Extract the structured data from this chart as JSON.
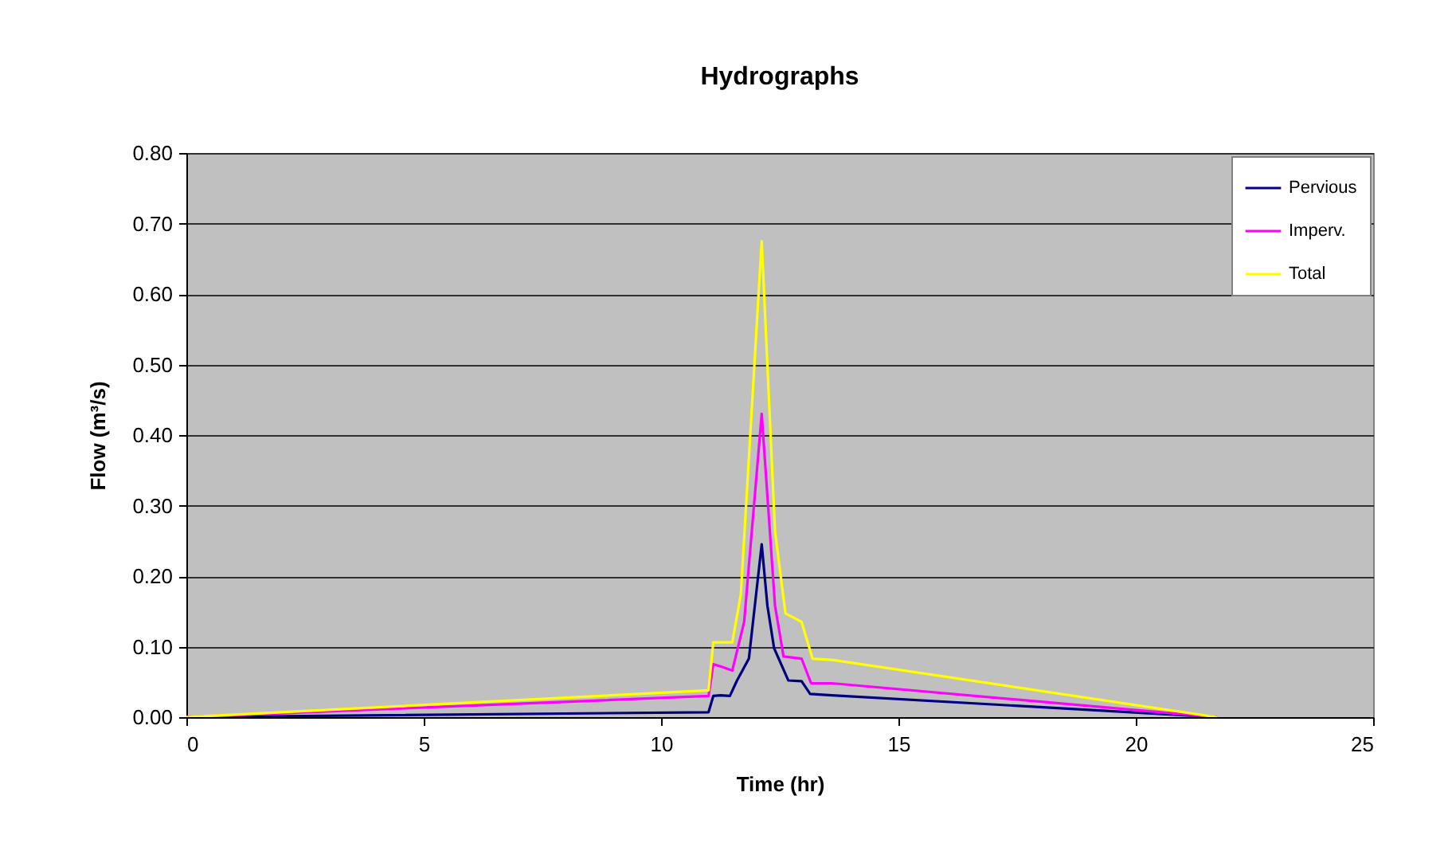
{
  "chart_data": {
    "type": "line",
    "title": "Hydrographs",
    "xlabel": "Time (hr)",
    "ylabel": "Flow (m³/s)",
    "xlim": [
      0,
      25
    ],
    "xticks": [
      0,
      5,
      10,
      15,
      20,
      25
    ],
    "ylim": [
      0,
      0.8
    ],
    "yticks": [
      {
        "value": 0,
        "label": "0.00"
      },
      {
        "value": 0.1,
        "label": "0.10"
      },
      {
        "value": 0.2,
        "label": "0.20"
      },
      {
        "value": 0.3,
        "label": "0.30"
      },
      {
        "value": 0.4,
        "label": "0.40"
      },
      {
        "value": 0.5,
        "label": "0.50"
      },
      {
        "value": 0.6,
        "label": "0.60"
      },
      {
        "value": 0.7,
        "label": "0.70"
      },
      {
        "value": 0.8,
        "label": "0.80"
      }
    ],
    "grid": "y",
    "legend": "top right",
    "series": [
      {
        "name": "Pervious",
        "color": "#000080",
        "x": [
          0,
          11,
          11.1,
          11.25,
          11.45,
          11.6,
          11.85,
          11.95,
          12.12,
          12.24,
          12.38,
          12.68,
          12.96,
          13.14,
          13.6,
          21.7
        ],
        "values": [
          0,
          0.007,
          0.03,
          0.031,
          0.03,
          0.052,
          0.083,
          0.143,
          0.245,
          0.158,
          0.098,
          0.052,
          0.051,
          0.033,
          0.031,
          0
        ]
      },
      {
        "name": "Imperv.",
        "color": "#ff00ff",
        "x": [
          0,
          11,
          11.1,
          11.25,
          11.5,
          11.75,
          12.12,
          12.4,
          12.58,
          12.96,
          13.16,
          13.6,
          21.7
        ],
        "values": [
          0,
          0.03,
          0.075,
          0.072,
          0.066,
          0.135,
          0.43,
          0.158,
          0.086,
          0.083,
          0.048,
          0.048,
          0
        ]
      },
      {
        "name": "Total",
        "color": "#ffff00",
        "x": [
          0,
          11,
          11.1,
          11.5,
          11.68,
          12.12,
          12.4,
          12.62,
          12.96,
          13.19,
          13.63,
          21.7
        ],
        "values": [
          0,
          0.038,
          0.106,
          0.106,
          0.174,
          0.675,
          0.264,
          0.147,
          0.135,
          0.083,
          0.081,
          0
        ]
      }
    ]
  }
}
